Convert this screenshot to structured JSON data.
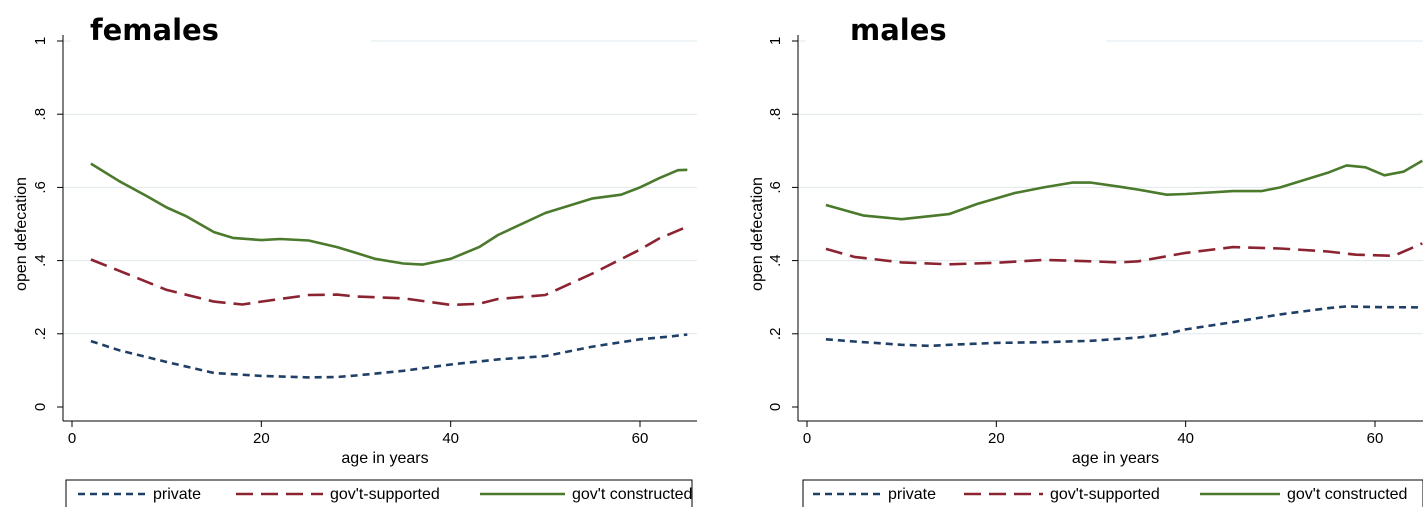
{
  "chart_data": [
    {
      "type": "line",
      "title": "females",
      "xlabel": "age in years",
      "ylabel": "open defecation",
      "xlim": [
        0,
        66
      ],
      "ylim": [
        0,
        1
      ],
      "x_ticks": [
        "0",
        "20",
        "40",
        "60"
      ],
      "y_ticks": [
        "0",
        ".2",
        ".4",
        ".6",
        ".8",
        "1"
      ],
      "grid": true,
      "legend_position": "bottom",
      "series": [
        {
          "name": "private",
          "color": "#1f3f66",
          "dash": "short-dash",
          "points": [
            [
              2,
              0.18
            ],
            [
              5,
              0.155
            ],
            [
              10,
              0.123
            ],
            [
              15,
              0.093
            ],
            [
              20,
              0.085
            ],
            [
              25,
              0.081
            ],
            [
              28,
              0.082
            ],
            [
              30,
              0.086
            ],
            [
              35,
              0.099
            ],
            [
              40,
              0.116
            ],
            [
              45,
              0.13
            ],
            [
              50,
              0.139
            ],
            [
              55,
              0.165
            ],
            [
              60,
              0.185
            ],
            [
              63,
              0.192
            ],
            [
              65,
              0.198
            ]
          ]
        },
        {
          "name": "gov't-supported",
          "color": "#8b2331",
          "dash": "long-dash",
          "points": [
            [
              2,
              0.403
            ],
            [
              5,
              0.372
            ],
            [
              10,
              0.32
            ],
            [
              15,
              0.288
            ],
            [
              18,
              0.28
            ],
            [
              20,
              0.288
            ],
            [
              25,
              0.306
            ],
            [
              28,
              0.307
            ],
            [
              30,
              0.302
            ],
            [
              35,
              0.297
            ],
            [
              40,
              0.279
            ],
            [
              43,
              0.282
            ],
            [
              45,
              0.295
            ],
            [
              50,
              0.306
            ],
            [
              55,
              0.365
            ],
            [
              60,
              0.43
            ],
            [
              62,
              0.46
            ],
            [
              65,
              0.493
            ]
          ]
        },
        {
          "name": "gov't constructed",
          "color": "#4b7a2c",
          "dash": "solid",
          "points": [
            [
              2,
              0.665
            ],
            [
              5,
              0.617
            ],
            [
              8,
              0.575
            ],
            [
              10,
              0.545
            ],
            [
              12,
              0.522
            ],
            [
              15,
              0.478
            ],
            [
              17,
              0.462
            ],
            [
              20,
              0.456
            ],
            [
              22,
              0.459
            ],
            [
              25,
              0.455
            ],
            [
              28,
              0.437
            ],
            [
              30,
              0.421
            ],
            [
              32,
              0.405
            ],
            [
              35,
              0.392
            ],
            [
              37,
              0.389
            ],
            [
              40,
              0.405
            ],
            [
              43,
              0.437
            ],
            [
              45,
              0.47
            ],
            [
              50,
              0.53
            ],
            [
              55,
              0.57
            ],
            [
              58,
              0.58
            ],
            [
              60,
              0.6
            ],
            [
              62,
              0.625
            ],
            [
              64,
              0.647
            ],
            [
              65,
              0.648
            ]
          ]
        }
      ]
    },
    {
      "type": "line",
      "title": "males",
      "xlabel": "age in years",
      "ylabel": "open defecation",
      "xlim": [
        0,
        66
      ],
      "ylim": [
        0,
        1
      ],
      "x_ticks": [
        "0",
        "20",
        "40",
        "60"
      ],
      "y_ticks": [
        "0",
        ".2",
        ".4",
        ".6",
        ".8",
        "1"
      ],
      "grid": true,
      "legend_position": "bottom",
      "series": [
        {
          "name": "private",
          "color": "#1f3f66",
          "dash": "short-dash",
          "points": [
            [
              2,
              0.185
            ],
            [
              5,
              0.179
            ],
            [
              10,
              0.17
            ],
            [
              13,
              0.167
            ],
            [
              15,
              0.17
            ],
            [
              20,
              0.175
            ],
            [
              25,
              0.177
            ],
            [
              30,
              0.181
            ],
            [
              35,
              0.19
            ],
            [
              38,
              0.2
            ],
            [
              40,
              0.212
            ],
            [
              45,
              0.232
            ],
            [
              50,
              0.253
            ],
            [
              55,
              0.27
            ],
            [
              57,
              0.275
            ],
            [
              60,
              0.273
            ],
            [
              65,
              0.272
            ]
          ]
        },
        {
          "name": "gov't-supported",
          "color": "#8b2331",
          "dash": "long-dash",
          "points": [
            [
              2,
              0.432
            ],
            [
              5,
              0.41
            ],
            [
              10,
              0.395
            ],
            [
              15,
              0.39
            ],
            [
              20,
              0.394
            ],
            [
              25,
              0.402
            ],
            [
              30,
              0.398
            ],
            [
              33,
              0.395
            ],
            [
              35,
              0.398
            ],
            [
              40,
              0.421
            ],
            [
              45,
              0.437
            ],
            [
              50,
              0.433
            ],
            [
              55,
              0.425
            ],
            [
              58,
              0.416
            ],
            [
              62,
              0.413
            ],
            [
              65,
              0.447
            ]
          ]
        },
        {
          "name": "gov't constructed",
          "color": "#4b7a2c",
          "dash": "solid",
          "points": [
            [
              2,
              0.552
            ],
            [
              6,
              0.523
            ],
            [
              10,
              0.513
            ],
            [
              15,
              0.527
            ],
            [
              18,
              0.555
            ],
            [
              22,
              0.585
            ],
            [
              25,
              0.6
            ],
            [
              28,
              0.613
            ],
            [
              30,
              0.613
            ],
            [
              33,
              0.602
            ],
            [
              35,
              0.594
            ],
            [
              38,
              0.58
            ],
            [
              40,
              0.582
            ],
            [
              45,
              0.59
            ],
            [
              48,
              0.59
            ],
            [
              50,
              0.6
            ],
            [
              55,
              0.64
            ],
            [
              57,
              0.66
            ],
            [
              59,
              0.655
            ],
            [
              61,
              0.633
            ],
            [
              63,
              0.643
            ],
            [
              65,
              0.673
            ]
          ]
        }
      ]
    }
  ]
}
